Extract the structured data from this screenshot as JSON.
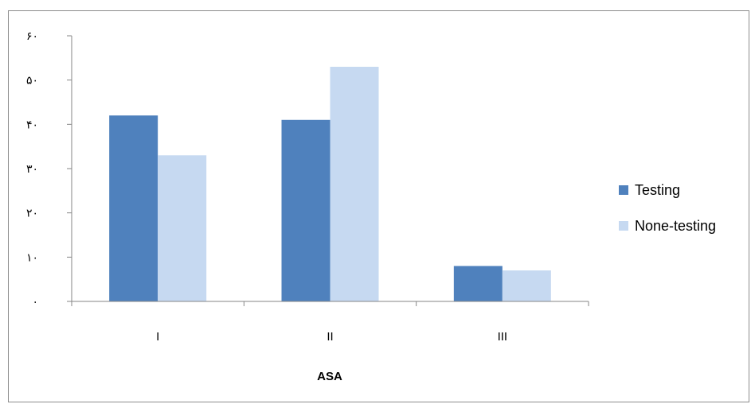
{
  "chart_data": {
    "type": "bar",
    "categories": [
      "I",
      "II",
      "III"
    ],
    "series": [
      {
        "name": "Testing",
        "values": [
          42,
          41,
          8
        ],
        "color": "#4f81bd"
      },
      {
        "name": "None-testing",
        "values": [
          33,
          53,
          7
        ],
        "color": "#c6d9f1"
      }
    ],
    "xlabel": "ASA",
    "ylabel": "",
    "ylim": [
      0,
      60
    ],
    "yticks": [
      {
        "value": 0,
        "label": "۰"
      },
      {
        "value": 10,
        "label": "۱۰"
      },
      {
        "value": 20,
        "label": "۲۰"
      },
      {
        "value": 30,
        "label": "۳۰"
      },
      {
        "value": 40,
        "label": "۴۰"
      },
      {
        "value": 50,
        "label": "۵۰"
      },
      {
        "value": 60,
        "label": "۶۰"
      }
    ],
    "grid": false,
    "legend_position": "right"
  }
}
